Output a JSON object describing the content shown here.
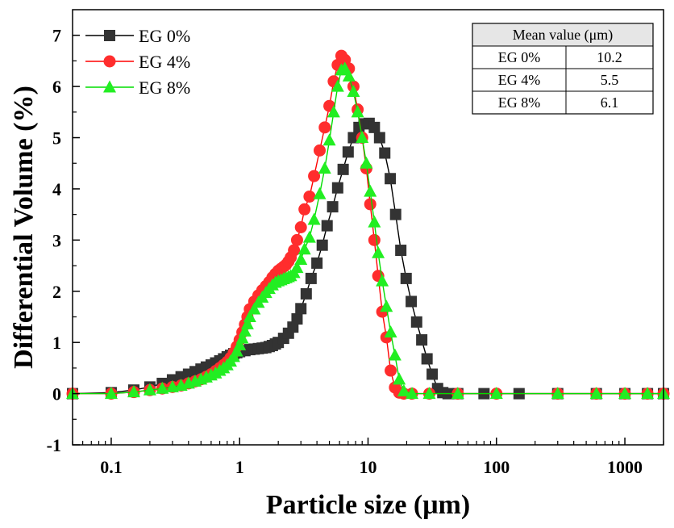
{
  "chart_data": {
    "type": "scatter-line",
    "xscale": "log",
    "xlabel": "Particle size (μm)",
    "ylabel": "Differential Volume (%)",
    "xlim": [
      0.05,
      2000
    ],
    "ylim": [
      -1,
      7.5
    ],
    "xticks": [
      {
        "value": 0.1,
        "label": "0.1"
      },
      {
        "value": 1,
        "label": "1"
      },
      {
        "value": 10,
        "label": "10"
      },
      {
        "value": 100,
        "label": "100"
      },
      {
        "value": 1000,
        "label": "1000"
      }
    ],
    "yticks": [
      {
        "value": -1,
        "label": "-1"
      },
      {
        "value": 0,
        "label": "0"
      },
      {
        "value": 1,
        "label": "1"
      },
      {
        "value": 2,
        "label": "2"
      },
      {
        "value": 3,
        "label": "3"
      },
      {
        "value": 4,
        "label": "4"
      },
      {
        "value": 5,
        "label": "5"
      },
      {
        "value": 6,
        "label": "6"
      },
      {
        "value": 7,
        "label": "7"
      }
    ],
    "legend_position": "top-left",
    "series": [
      {
        "name": "EG 0%",
        "marker": "square",
        "color": "#333333",
        "line_color": "#000000",
        "x": [
          0.05,
          0.1,
          0.15,
          0.2,
          0.25,
          0.3,
          0.35,
          0.4,
          0.45,
          0.5,
          0.55,
          0.6,
          0.65,
          0.7,
          0.75,
          0.8,
          0.85,
          0.9,
          0.95,
          1.0,
          1.1,
          1.2,
          1.3,
          1.4,
          1.5,
          1.6,
          1.7,
          1.8,
          1.9,
          2.0,
          2.2,
          2.4,
          2.6,
          2.8,
          3.0,
          3.3,
          3.6,
          4.0,
          4.4,
          4.8,
          5.3,
          5.8,
          6.4,
          7.0,
          7.7,
          8.5,
          9.3,
          10.2,
          11.2,
          12.3,
          13.5,
          14.9,
          16.4,
          18.0,
          19.8,
          21.7,
          23.9,
          26.2,
          28.8,
          31.6,
          34.8,
          38.2,
          42.0,
          50,
          80,
          150,
          300,
          600,
          1000,
          1500,
          2000
        ],
        "y": [
          0.0,
          0.02,
          0.07,
          0.13,
          0.2,
          0.27,
          0.33,
          0.38,
          0.43,
          0.48,
          0.52,
          0.56,
          0.6,
          0.64,
          0.68,
          0.72,
          0.75,
          0.78,
          0.8,
          0.82,
          0.84,
          0.86,
          0.87,
          0.88,
          0.89,
          0.9,
          0.92,
          0.94,
          0.97,
          1.0,
          1.08,
          1.18,
          1.3,
          1.46,
          1.66,
          1.95,
          2.25,
          2.55,
          2.9,
          3.28,
          3.65,
          4.02,
          4.38,
          4.72,
          5.0,
          5.2,
          5.27,
          5.28,
          5.2,
          5.0,
          4.7,
          4.2,
          3.5,
          2.8,
          2.25,
          1.8,
          1.4,
          1.05,
          0.68,
          0.38,
          0.1,
          0.02,
          0.0,
          0.0,
          0.0,
          0.0,
          0.0,
          0.0,
          0.0,
          0.0,
          0.0
        ]
      },
      {
        "name": "EG 4%",
        "marker": "circle",
        "color": "#ff2d2d",
        "line_color": "#ff0000",
        "x": [
          0.05,
          0.1,
          0.15,
          0.2,
          0.25,
          0.3,
          0.35,
          0.4,
          0.45,
          0.5,
          0.55,
          0.6,
          0.65,
          0.7,
          0.75,
          0.8,
          0.85,
          0.9,
          0.95,
          1.0,
          1.05,
          1.1,
          1.15,
          1.2,
          1.3,
          1.4,
          1.5,
          1.6,
          1.7,
          1.8,
          1.9,
          2.0,
          2.1,
          2.2,
          2.3,
          2.4,
          2.5,
          2.65,
          2.8,
          3.0,
          3.2,
          3.5,
          3.8,
          4.2,
          4.6,
          5.0,
          5.4,
          5.8,
          6.2,
          6.6,
          7.1,
          7.7,
          8.3,
          9.0,
          9.7,
          10.4,
          11.2,
          12.0,
          12.9,
          13.9,
          15.0,
          16.2,
          17.5,
          19.0,
          22,
          30,
          50,
          100,
          300,
          600,
          1000,
          1500,
          2000
        ],
        "y": [
          0.0,
          0.0,
          0.03,
          0.07,
          0.1,
          0.13,
          0.16,
          0.2,
          0.24,
          0.28,
          0.33,
          0.38,
          0.44,
          0.5,
          0.56,
          0.62,
          0.7,
          0.8,
          0.92,
          1.05,
          1.2,
          1.35,
          1.5,
          1.65,
          1.8,
          1.92,
          2.02,
          2.1,
          2.18,
          2.27,
          2.34,
          2.4,
          2.44,
          2.48,
          2.52,
          2.58,
          2.66,
          2.8,
          3.0,
          3.25,
          3.6,
          3.85,
          4.25,
          4.75,
          5.2,
          5.62,
          6.1,
          6.42,
          6.6,
          6.52,
          6.35,
          6.0,
          5.55,
          5.0,
          4.4,
          3.7,
          3.0,
          2.3,
          1.6,
          1.1,
          0.45,
          0.12,
          0.02,
          0.0,
          0.0,
          0.0,
          0.0,
          0.0,
          0.0,
          0.0,
          0.0,
          0.0,
          0.0
        ]
      },
      {
        "name": "EG 8%",
        "marker": "triangle",
        "color": "#22ee22",
        "line_color": "#00dd00",
        "x": [
          0.05,
          0.1,
          0.15,
          0.2,
          0.25,
          0.3,
          0.35,
          0.4,
          0.45,
          0.5,
          0.55,
          0.6,
          0.65,
          0.7,
          0.75,
          0.8,
          0.85,
          0.9,
          0.95,
          1.0,
          1.05,
          1.1,
          1.15,
          1.2,
          1.3,
          1.4,
          1.5,
          1.6,
          1.7,
          1.8,
          1.9,
          2.0,
          2.1,
          2.2,
          2.3,
          2.4,
          2.5,
          2.65,
          2.8,
          3.0,
          3.2,
          3.5,
          3.8,
          4.2,
          4.6,
          5.0,
          5.4,
          5.8,
          6.2,
          6.6,
          7.1,
          7.7,
          8.3,
          9.0,
          9.7,
          10.4,
          11.2,
          12.0,
          12.9,
          13.9,
          15.0,
          16.2,
          17.5,
          19.0,
          22,
          30,
          50,
          100,
          300,
          600,
          1000,
          1500,
          2000
        ],
        "y": [
          0.0,
          0.0,
          0.03,
          0.07,
          0.1,
          0.13,
          0.16,
          0.2,
          0.24,
          0.28,
          0.32,
          0.36,
          0.4,
          0.45,
          0.5,
          0.56,
          0.63,
          0.72,
          0.83,
          0.95,
          1.08,
          1.22,
          1.36,
          1.5,
          1.65,
          1.78,
          1.88,
          1.97,
          2.05,
          2.12,
          2.17,
          2.2,
          2.22,
          2.24,
          2.26,
          2.28,
          2.3,
          2.36,
          2.46,
          2.62,
          2.82,
          3.05,
          3.4,
          3.9,
          4.4,
          4.95,
          5.5,
          6.0,
          6.32,
          6.35,
          6.2,
          5.9,
          5.5,
          5.0,
          4.5,
          3.95,
          3.35,
          2.75,
          2.2,
          1.7,
          1.2,
          0.75,
          0.28,
          0.05,
          0.0,
          0.0,
          0.0,
          0.0,
          0.0,
          0.0,
          0.0,
          0.0,
          0.0
        ]
      }
    ],
    "inset_table": {
      "header": "Mean value (μm)",
      "rows": [
        {
          "label": "EG 0%",
          "value": "10.2"
        },
        {
          "label": "EG 4%",
          "value": "5.5"
        },
        {
          "label": "EG 8%",
          "value": "6.1"
        }
      ]
    }
  }
}
